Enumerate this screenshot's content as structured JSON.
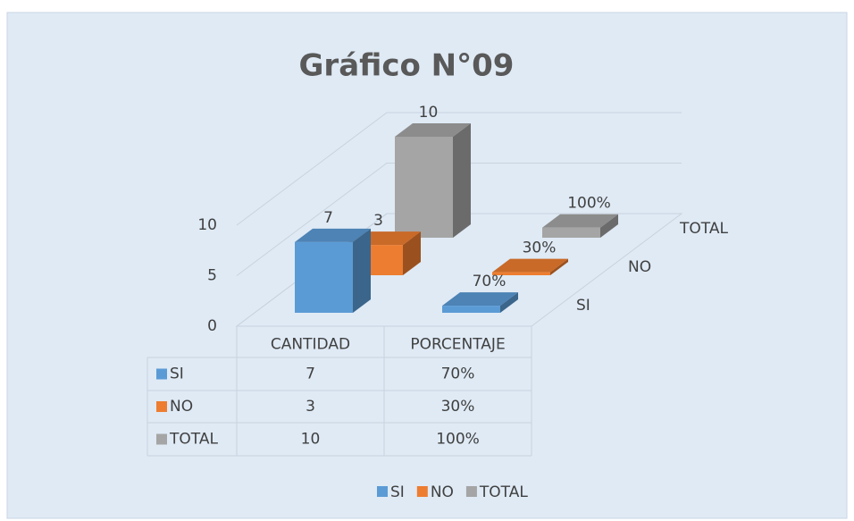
{
  "chart_data": {
    "type": "bar3d",
    "title": "Gráfico N°09",
    "categories": [
      "CANTIDAD",
      "PORCENTAJE"
    ],
    "series": [
      {
        "name": "SI",
        "color": "#5b9bd5",
        "values": [
          7,
          0.7
        ],
        "value_labels": [
          "7",
          "70%"
        ]
      },
      {
        "name": "NO",
        "color": "#ed7d31",
        "values": [
          3,
          0.3
        ],
        "value_labels": [
          "3",
          "30%"
        ]
      },
      {
        "name": "TOTAL",
        "color": "#a5a5a5",
        "values": [
          10,
          1
        ],
        "value_labels": [
          "10",
          "100%"
        ]
      }
    ],
    "ylim": [
      0,
      10
    ],
    "yticks": [
      0,
      5,
      10
    ],
    "grid": true,
    "legend": "bottom",
    "data_table": true
  }
}
